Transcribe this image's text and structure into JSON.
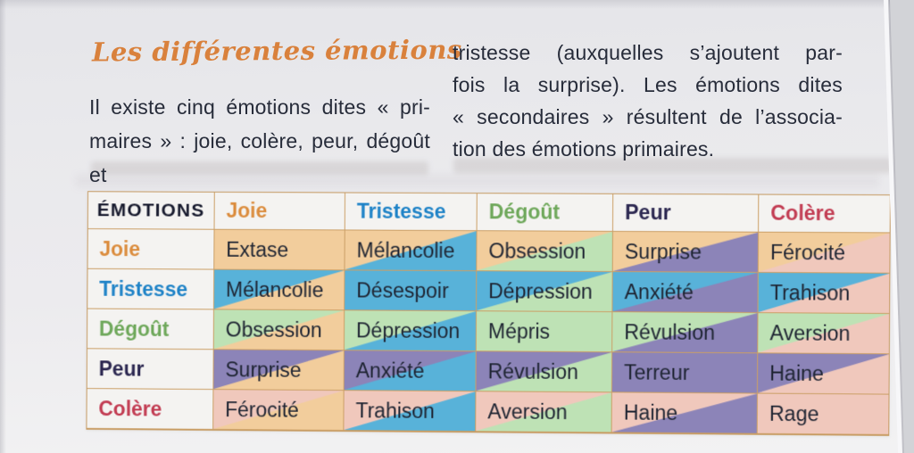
{
  "page": {
    "title": "Les différentes émotions",
    "intro_left_lines": [
      "Il existe cinq émotions dites « pri-",
      "maires » : joie, colère, peur, dégoût et"
    ],
    "intro_right_lines": [
      "tristesse (auxquelles s’ajoutent par-",
      "fois la surprise). Les émotions dites",
      "« secondaires » résultent de l’associa-",
      "tion des émotions primaires."
    ]
  },
  "palette": {
    "joie": "#F2CD9C",
    "tristesse": "#58B2D9",
    "degout": "#BEE2B5",
    "peur": "#8C84B8",
    "colere": "#F0C8BC"
  },
  "label_colors": {
    "emotions": "#181B2E",
    "joie": "#DB8C3D",
    "tristesse": "#1F83C7",
    "degout": "#6FA85B",
    "peur": "#2B2750",
    "colere": "#C23C52"
  },
  "table": {
    "corner_label": "ÉMOTIONS",
    "columns": [
      {
        "key": "joie",
        "label": "Joie"
      },
      {
        "key": "tristesse",
        "label": "Tristesse"
      },
      {
        "key": "degout",
        "label": "Dégoût"
      },
      {
        "key": "peur",
        "label": "Peur"
      },
      {
        "key": "colere",
        "label": "Colère"
      }
    ],
    "rows": [
      {
        "key": "joie",
        "label": "Joie",
        "cells": [
          "Extase",
          "Mélancolie",
          "Obsession",
          "Surprise",
          "Férocité"
        ]
      },
      {
        "key": "tristesse",
        "label": "Tristesse",
        "cells": [
          "Mélancolie",
          "Désespoir",
          "Dépression",
          "Anxiété",
          "Trahison"
        ]
      },
      {
        "key": "degout",
        "label": "Dégoût",
        "cells": [
          "Obsession",
          "Dépression",
          "Mépris",
          "Révulsion",
          "Aversion"
        ]
      },
      {
        "key": "peur",
        "label": "Peur",
        "cells": [
          "Surprise",
          "Anxiété",
          "Révulsion",
          "Terreur",
          "Haine"
        ]
      },
      {
        "key": "colere",
        "label": "Colère",
        "cells": [
          "Férocité",
          "Trahison",
          "Aversion",
          "Haine",
          "Rage"
        ]
      }
    ]
  }
}
